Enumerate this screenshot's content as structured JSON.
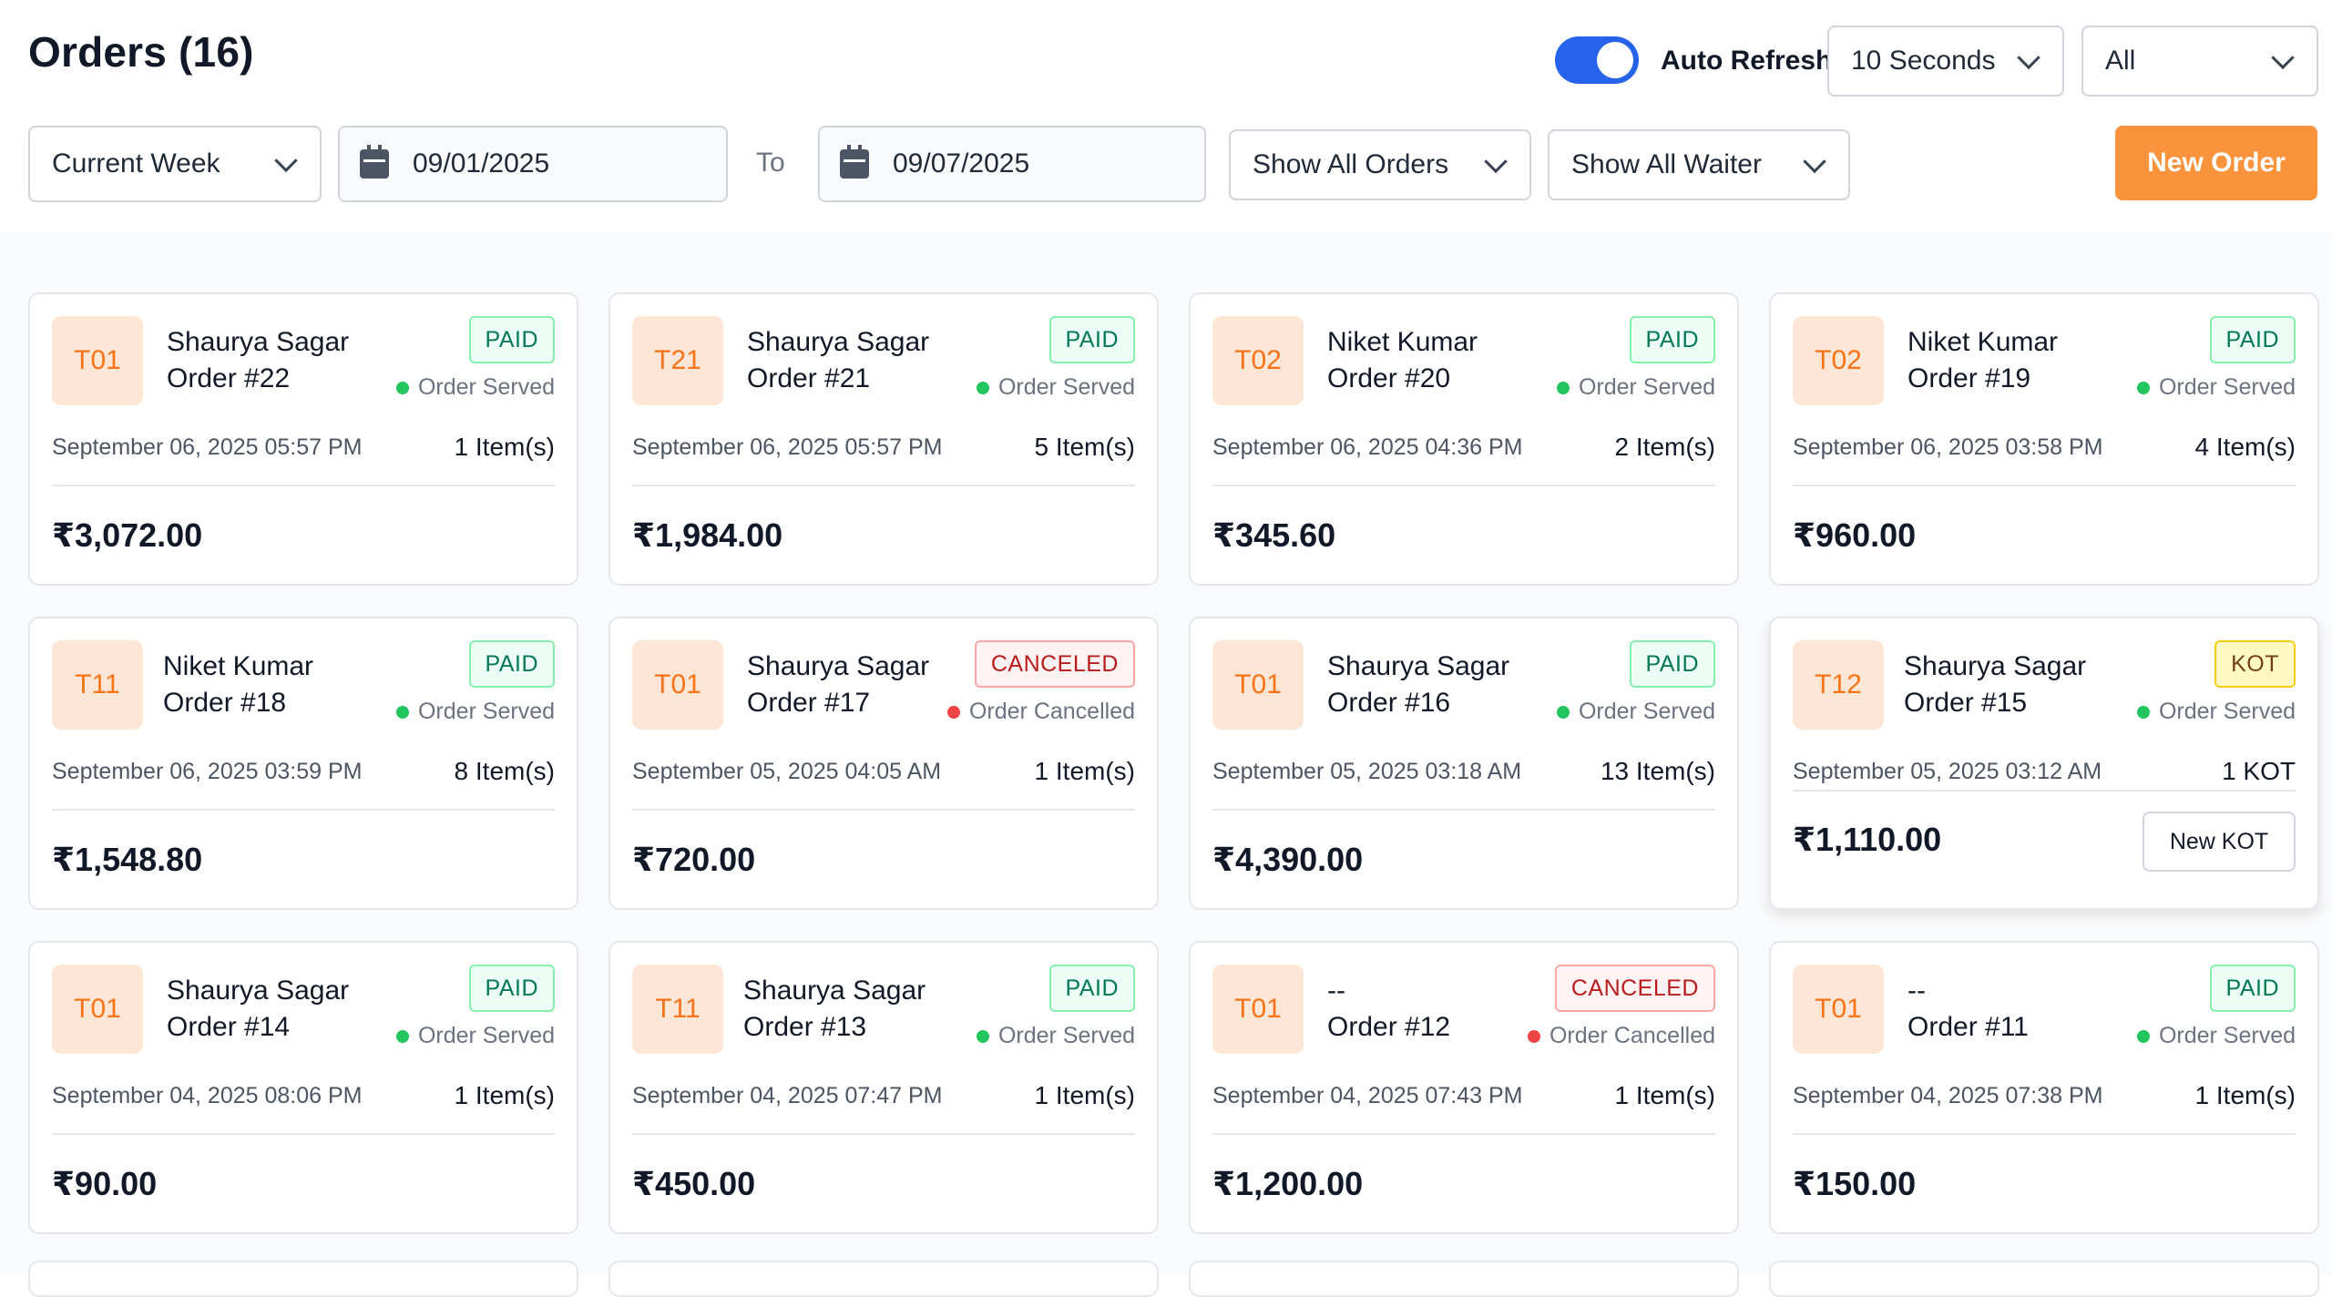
{
  "header": {
    "title": "Orders (16)",
    "auto_refresh_label": "Auto Refresh",
    "refresh_interval": "10 Seconds",
    "scope_filter": "All"
  },
  "filters": {
    "period": "Current Week",
    "date_from": "09/01/2025",
    "to_label": "To",
    "date_to": "09/07/2025",
    "order_filter": "Show All Orders",
    "waiter_filter": "Show All Waiter",
    "new_order_label": "New Order"
  },
  "orders": [
    {
      "table": "T01",
      "customer": "Shaurya Sagar",
      "order": "Order #22",
      "tag": "PAID",
      "status": "Order Served",
      "date": "September 06, 2025 05:57 PM",
      "items": "1 Item(s)",
      "amount": "₹3,072.00"
    },
    {
      "table": "T21",
      "customer": "Shaurya Sagar",
      "order": "Order #21",
      "tag": "PAID",
      "status": "Order Served",
      "date": "September 06, 2025 05:57 PM",
      "items": "5 Item(s)",
      "amount": "₹1,984.00"
    },
    {
      "table": "T02",
      "customer": "Niket Kumar",
      "order": "Order #20",
      "tag": "PAID",
      "status": "Order Served",
      "date": "September 06, 2025 04:36 PM",
      "items": "2 Item(s)",
      "amount": "₹345.60"
    },
    {
      "table": "T02",
      "customer": "Niket Kumar",
      "order": "Order #19",
      "tag": "PAID",
      "status": "Order Served",
      "date": "September 06, 2025 03:58 PM",
      "items": "4 Item(s)",
      "amount": "₹960.00"
    },
    {
      "table": "T11",
      "customer": "Niket Kumar",
      "order": "Order #18",
      "tag": "PAID",
      "status": "Order Served",
      "date": "September 06, 2025 03:59 PM",
      "items": "8 Item(s)",
      "amount": "₹1,548.80"
    },
    {
      "table": "T01",
      "customer": "Shaurya Sagar",
      "order": "Order #17",
      "tag": "CANCELED",
      "status": "Order Cancelled",
      "date": "September 05, 2025 04:05 AM",
      "items": "1 Item(s)",
      "amount": "₹720.00"
    },
    {
      "table": "T01",
      "customer": "Shaurya Sagar",
      "order": "Order #16",
      "tag": "PAID",
      "status": "Order Served",
      "date": "September 05, 2025 03:18 AM",
      "items": "13 Item(s)",
      "amount": "₹4,390.00"
    },
    {
      "table": "T12",
      "customer": "Shaurya Sagar",
      "order": "Order #15",
      "tag": "KOT",
      "status": "Order Served",
      "date": "September 05, 2025 03:12 AM",
      "items": "1 KOT",
      "amount": "₹1,110.00",
      "action": "New KOT"
    },
    {
      "table": "T01",
      "customer": "Shaurya Sagar",
      "order": "Order #14",
      "tag": "PAID",
      "status": "Order Served",
      "date": "September 04, 2025 08:06 PM",
      "items": "1 Item(s)",
      "amount": "₹90.00"
    },
    {
      "table": "T11",
      "customer": "Shaurya Sagar",
      "order": "Order #13",
      "tag": "PAID",
      "status": "Order Served",
      "date": "September 04, 2025 07:47 PM",
      "items": "1 Item(s)",
      "amount": "₹450.00"
    },
    {
      "table": "T01",
      "customer": "--",
      "order": "Order #12",
      "tag": "CANCELED",
      "status": "Order Cancelled",
      "date": "September 04, 2025 07:43 PM",
      "items": "1 Item(s)",
      "amount": "₹1,200.00"
    },
    {
      "table": "T01",
      "customer": "--",
      "order": "Order #11",
      "tag": "PAID",
      "status": "Order Served",
      "date": "September 04, 2025 07:38 PM",
      "items": "1 Item(s)",
      "amount": "₹150.00"
    }
  ],
  "colors": {
    "accent": "#fb923c",
    "toggle_on": "#2563eb",
    "paid": "#047857",
    "canceled": "#b91c1c",
    "kot": "#facc15"
  }
}
